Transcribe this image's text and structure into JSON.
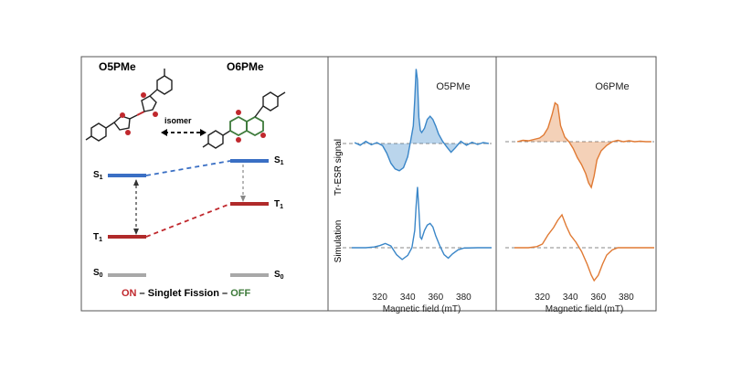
{
  "left_panel": {
    "molecule_left": "O5PMe",
    "molecule_right": "O6PMe",
    "arrow_label": "isomer",
    "levels_left": [
      "S",
      "T",
      "S"
    ],
    "levels_left_sub": [
      "1",
      "1",
      "0"
    ],
    "levels_right": [
      "S",
      "T",
      "S"
    ],
    "levels_right_sub": [
      "1",
      "1",
      "0"
    ],
    "caption_on": "ON",
    "caption_mid": " – Singlet Fission – ",
    "caption_off": "OFF",
    "colors": {
      "singlet": "#3a6fc4",
      "triplet": "#b02a2a",
      "ground": "#a8a8a8",
      "on": "#c0282d",
      "off": "#3d7a3a"
    }
  },
  "chart_data": [
    {
      "type": "line",
      "title": "O5PMe",
      "xlabel": "Magnetic field (mT)",
      "ylabel_top": "Tr-ESR signal",
      "ylabel_bottom": "Simulation",
      "xlim": [
        300,
        400
      ],
      "xticks": [
        320,
        340,
        360,
        380
      ],
      "color": "#3a86c8",
      "series": [
        {
          "name": "Tr-ESR signal",
          "x": [
            302,
            306,
            310,
            314,
            318,
            322,
            325,
            328,
            331,
            334,
            337,
            340,
            342,
            344,
            345,
            346,
            347,
            348,
            349,
            350,
            352,
            354,
            356,
            358,
            360,
            362,
            365,
            368,
            371,
            374,
            378,
            382,
            386,
            390,
            394,
            398
          ],
          "y": [
            0.02,
            -0.04,
            0.05,
            -0.03,
            0.02,
            -0.05,
            -0.22,
            -0.45,
            -0.58,
            -0.62,
            -0.55,
            -0.3,
            0.05,
            0.4,
            1.0,
            1.7,
            1.45,
            0.6,
            0.3,
            0.25,
            0.35,
            0.55,
            0.62,
            0.55,
            0.4,
            0.22,
            0.05,
            -0.08,
            -0.2,
            -0.1,
            0.05,
            -0.04,
            0.03,
            -0.02,
            0.02,
            0.0
          ]
        },
        {
          "name": "Simulation",
          "x": [
            300,
            310,
            316,
            320,
            324,
            328,
            332,
            336,
            340,
            343,
            345,
            346,
            347,
            348,
            349,
            350,
            352,
            354,
            356,
            358,
            360,
            363,
            366,
            369,
            372,
            376,
            380,
            390,
            400
          ],
          "y": [
            0.0,
            0.0,
            0.02,
            0.06,
            0.12,
            0.05,
            -0.2,
            -0.34,
            -0.22,
            0.0,
            0.5,
            1.2,
            1.75,
            1.1,
            0.3,
            0.25,
            0.5,
            0.65,
            0.7,
            0.6,
            0.35,
            0.05,
            -0.2,
            -0.3,
            -0.18,
            -0.06,
            -0.01,
            0.0,
            0.0
          ]
        }
      ]
    },
    {
      "type": "line",
      "title": "O6PMe",
      "xlabel": "Magnetic field (mT)",
      "xlim": [
        300,
        400
      ],
      "xticks": [
        320,
        340,
        360,
        380
      ],
      "color": "#e07a34",
      "series": [
        {
          "name": "Tr-ESR signal",
          "x": [
            302,
            306,
            310,
            314,
            318,
            321,
            324,
            327,
            329,
            331,
            333,
            336,
            339,
            342,
            345,
            348,
            351,
            353,
            355,
            357,
            359,
            362,
            366,
            370,
            374,
            378,
            382,
            386,
            390,
            394,
            398
          ],
          "y": [
            0.0,
            0.03,
            0.02,
            0.05,
            0.08,
            0.15,
            0.3,
            0.6,
            0.85,
            0.8,
            0.35,
            0.1,
            0.0,
            -0.15,
            -0.35,
            -0.5,
            -0.7,
            -0.9,
            -1.0,
            -0.75,
            -0.4,
            -0.2,
            -0.08,
            0.0,
            0.03,
            0.0,
            0.02,
            0.0,
            0.01,
            0.0,
            0.0
          ]
        },
        {
          "name": "Simulation",
          "x": [
            300,
            310,
            316,
            320,
            324,
            328,
            331,
            334,
            337,
            340,
            344,
            348,
            352,
            355,
            357,
            360,
            363,
            366,
            370,
            374,
            380,
            390,
            400
          ],
          "y": [
            0.0,
            0.0,
            0.03,
            0.1,
            0.35,
            0.55,
            0.75,
            0.9,
            0.6,
            0.35,
            0.15,
            -0.1,
            -0.45,
            -0.75,
            -0.9,
            -0.75,
            -0.45,
            -0.2,
            -0.06,
            0.0,
            0.0,
            0.0,
            0.0
          ]
        }
      ]
    }
  ]
}
